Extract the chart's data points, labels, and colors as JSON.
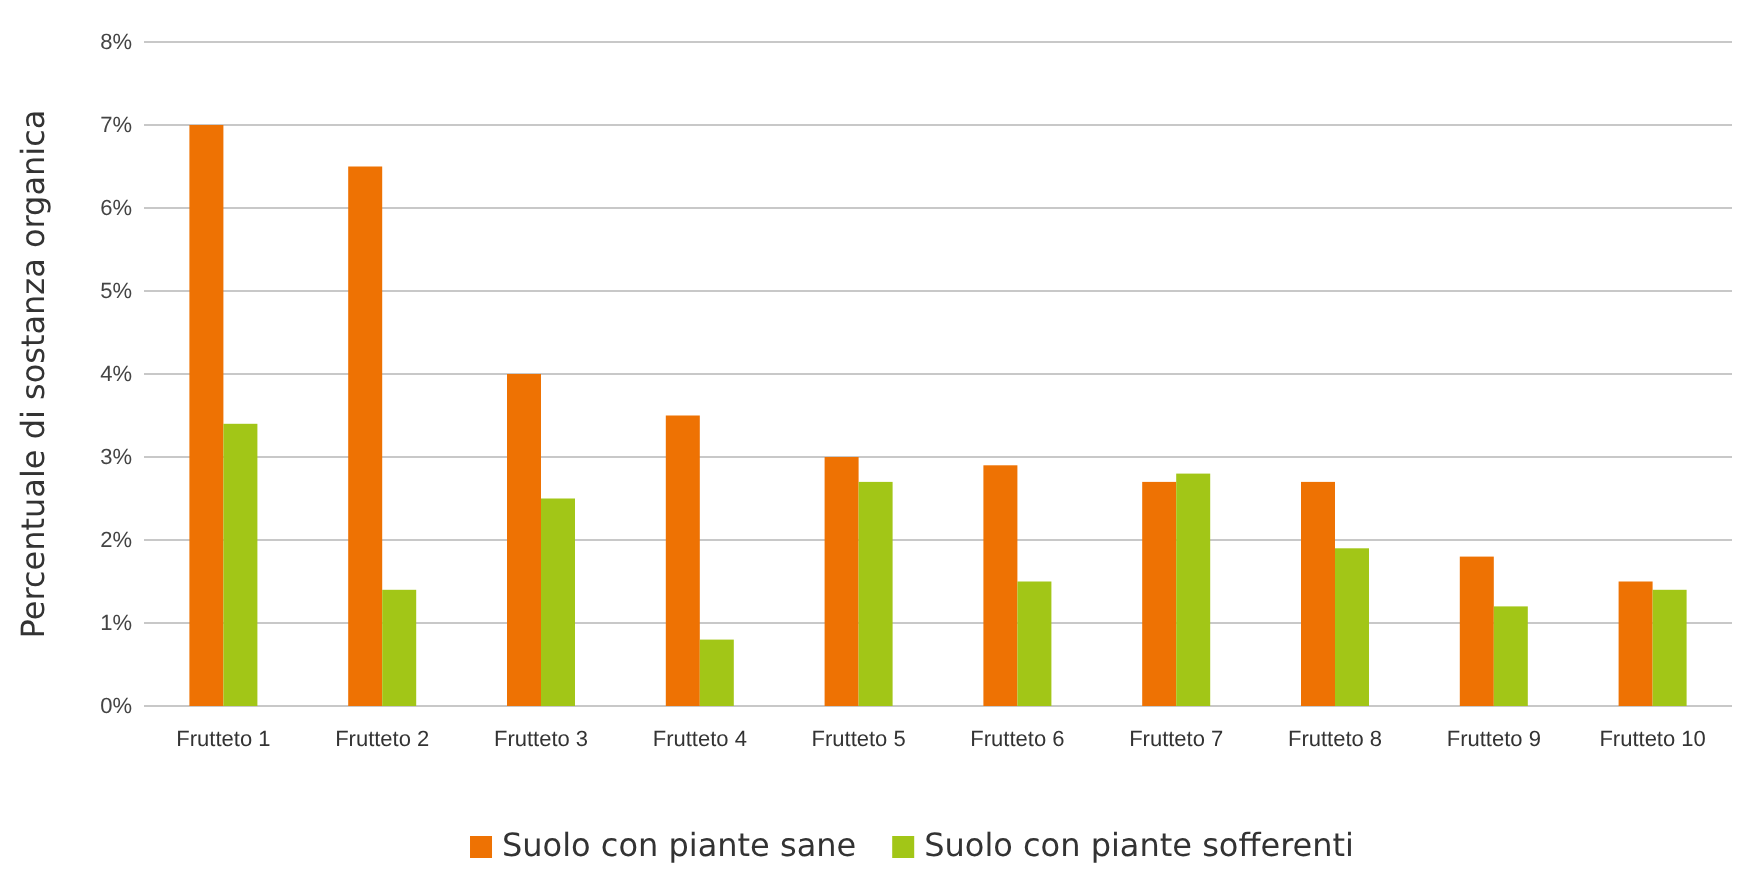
{
  "chart_data": {
    "type": "bar",
    "ylabel": "Percentuale di sostanza organica",
    "categories": [
      "Frutteto 1",
      "Frutteto 2",
      "Frutteto 3",
      "Frutteto 4",
      "Frutteto 5",
      "Frutteto 6",
      "Frutteto 7",
      "Frutteto 8",
      "Frutteto 9",
      "Frutteto 10"
    ],
    "series": [
      {
        "name": "Suolo con piante sane",
        "color": "#ee7203",
        "values": [
          7.0,
          6.5,
          4.0,
          3.5,
          3.0,
          2.9,
          2.7,
          2.7,
          1.8,
          1.5
        ]
      },
      {
        "name": "Suolo con piante sofferenti",
        "color": "#a2c617",
        "values": [
          3.4,
          1.4,
          2.5,
          0.8,
          2.7,
          1.5,
          2.8,
          1.9,
          1.2,
          1.4
        ]
      }
    ],
    "ylim": [
      0,
      8
    ],
    "yticks": [
      {
        "value": 0,
        "label": "0%"
      },
      {
        "value": 1,
        "label": "1%"
      },
      {
        "value": 2,
        "label": "2%"
      },
      {
        "value": 3,
        "label": "3%"
      },
      {
        "value": 4,
        "label": "4%"
      },
      {
        "value": 5,
        "label": "5%"
      },
      {
        "value": 6,
        "label": "6%"
      },
      {
        "value": 7,
        "label": "7%"
      },
      {
        "value": 8,
        "label": "8%"
      }
    ],
    "grid": "y",
    "legend": "bottom"
  }
}
